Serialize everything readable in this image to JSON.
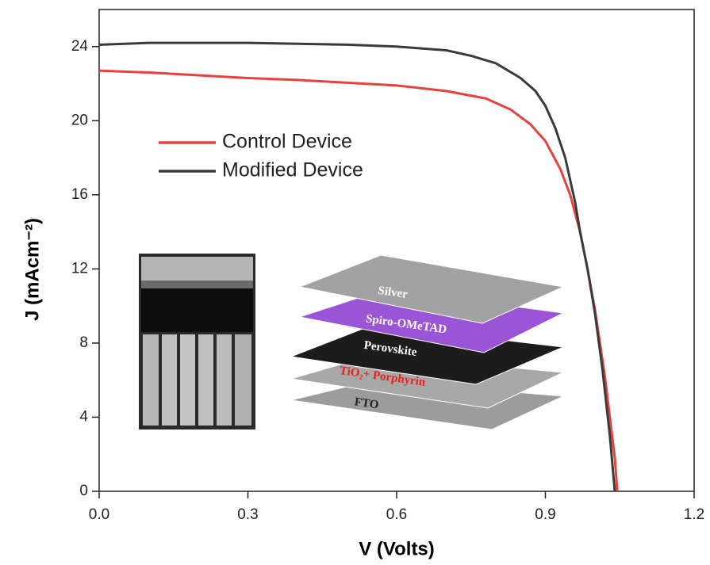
{
  "chart_data": {
    "type": "line",
    "xlabel": "V (Volts)",
    "ylabel": "J (mAcm⁻²)",
    "xlim": [
      0,
      1.2
    ],
    "xticks": [
      {
        "value": 0,
        "label": "0.0"
      },
      0.3,
      0.6,
      0.9,
      {
        "value": 1.2,
        "label": "1.2"
      }
    ],
    "ylim": [
      0,
      26
    ],
    "yticks": [
      0,
      4,
      8,
      12,
      16,
      20,
      24
    ],
    "legend_loc": "upper left",
    "annotations": [
      "Silver",
      "Spiro-OMeTAD",
      "Perovskite",
      "TiO₂+ Porphyrin",
      "FTO"
    ],
    "series": [
      {
        "name": "Control Device",
        "color": "#e8403c",
        "x": [
          0,
          0.1,
          0.2,
          0.3,
          0.4,
          0.5,
          0.6,
          0.7,
          0.78,
          0.83,
          0.87,
          0.9,
          0.93,
          0.95,
          0.97,
          0.985,
          1.0,
          1.01,
          1.02,
          1.03,
          1.04,
          1.045
        ],
        "values": [
          22.7,
          22.6,
          22.45,
          22.3,
          22.2,
          22.05,
          21.9,
          21.6,
          21.2,
          20.6,
          19.8,
          18.9,
          17.4,
          16.0,
          14.0,
          12.0,
          9.8,
          8.0,
          6.2,
          4.0,
          1.8,
          0
        ]
      },
      {
        "name": "Modified Device",
        "color": "#3a3a3a",
        "x": [
          0,
          0.1,
          0.2,
          0.3,
          0.4,
          0.5,
          0.6,
          0.7,
          0.75,
          0.8,
          0.85,
          0.88,
          0.9,
          0.92,
          0.94,
          0.96,
          0.97,
          0.985,
          1.0,
          1.015,
          1.03,
          1.04
        ],
        "values": [
          24.1,
          24.2,
          24.2,
          24.2,
          24.15,
          24.1,
          24.0,
          23.8,
          23.5,
          23.1,
          22.3,
          21.6,
          20.8,
          19.6,
          18.0,
          15.6,
          14.0,
          12.0,
          9.6,
          6.6,
          3.0,
          0
        ]
      }
    ]
  }
}
